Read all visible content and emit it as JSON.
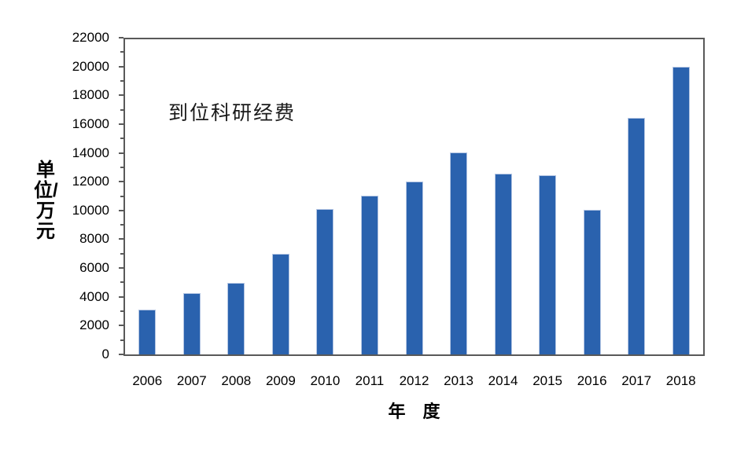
{
  "chart_data": {
    "type": "bar",
    "annotation": "到位科研经费",
    "xlabel": "年　度",
    "ylabel": "单位/万元",
    "categories": [
      "2006",
      "2007",
      "2008",
      "2009",
      "2010",
      "2011",
      "2012",
      "2013",
      "2014",
      "2015",
      "2016",
      "2017",
      "2018"
    ],
    "series": [
      {
        "name": "到位科研经费",
        "values": [
          3150,
          4300,
          5000,
          7000,
          10150,
          11100,
          12050,
          14100,
          12600,
          12500,
          10100,
          16500,
          20100
        ]
      }
    ],
    "ylim": [
      0,
      22000
    ],
    "y_major_step": 2000,
    "y_minor_step": 1000,
    "y_tick_labels": [
      "0",
      "2000",
      "4000",
      "6000",
      "8000",
      "10000",
      "12000",
      "14000",
      "16000",
      "18000",
      "20000",
      "22000"
    ],
    "grid": "off",
    "legend": "none",
    "colors": {
      "bar_fill": "#2A62AE",
      "bar_border": "#B3C5E3",
      "axis_frame": "#595959",
      "text": "#000000",
      "background": "#FFFFFF"
    }
  }
}
